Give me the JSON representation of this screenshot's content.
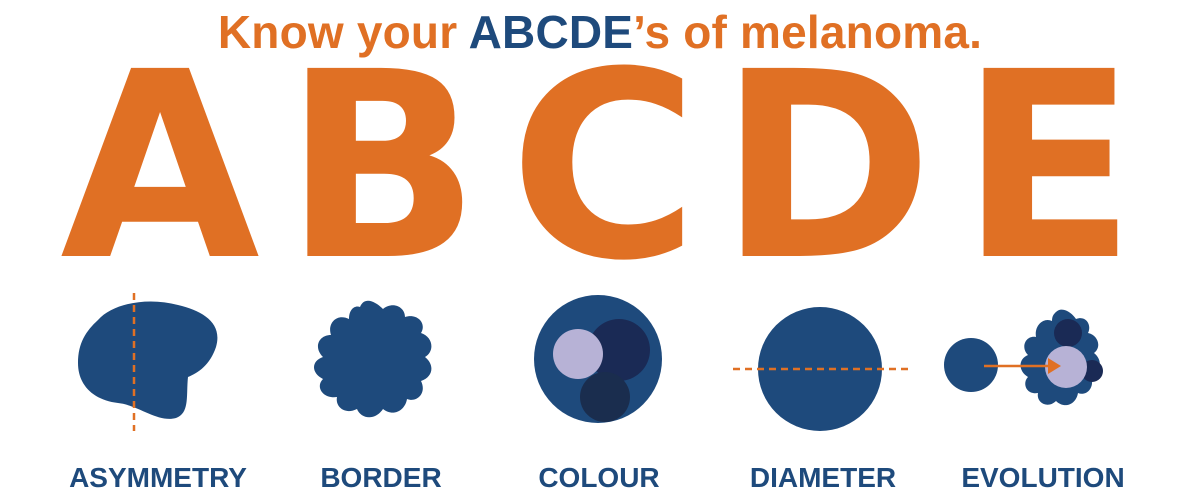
{
  "headline": {
    "part1": "Know your ",
    "part2": "ABCDE",
    "part3": "’s of melanoma."
  },
  "letters": [
    "A",
    "B",
    "C",
    "D",
    "E"
  ],
  "labels": [
    "ASYMMETRY",
    "BORDER",
    "COLOUR",
    "DIAMETER",
    "EVOLUTION"
  ],
  "icons": [
    "asymmetry-icon",
    "border-icon",
    "colour-icon",
    "diameter-icon",
    "evolution-icon"
  ],
  "colors": {
    "orange": "#e07024",
    "blue": "#1e4a7c",
    "dark_navy": "#1a2a55",
    "light_lilac": "#b7b2d6"
  }
}
